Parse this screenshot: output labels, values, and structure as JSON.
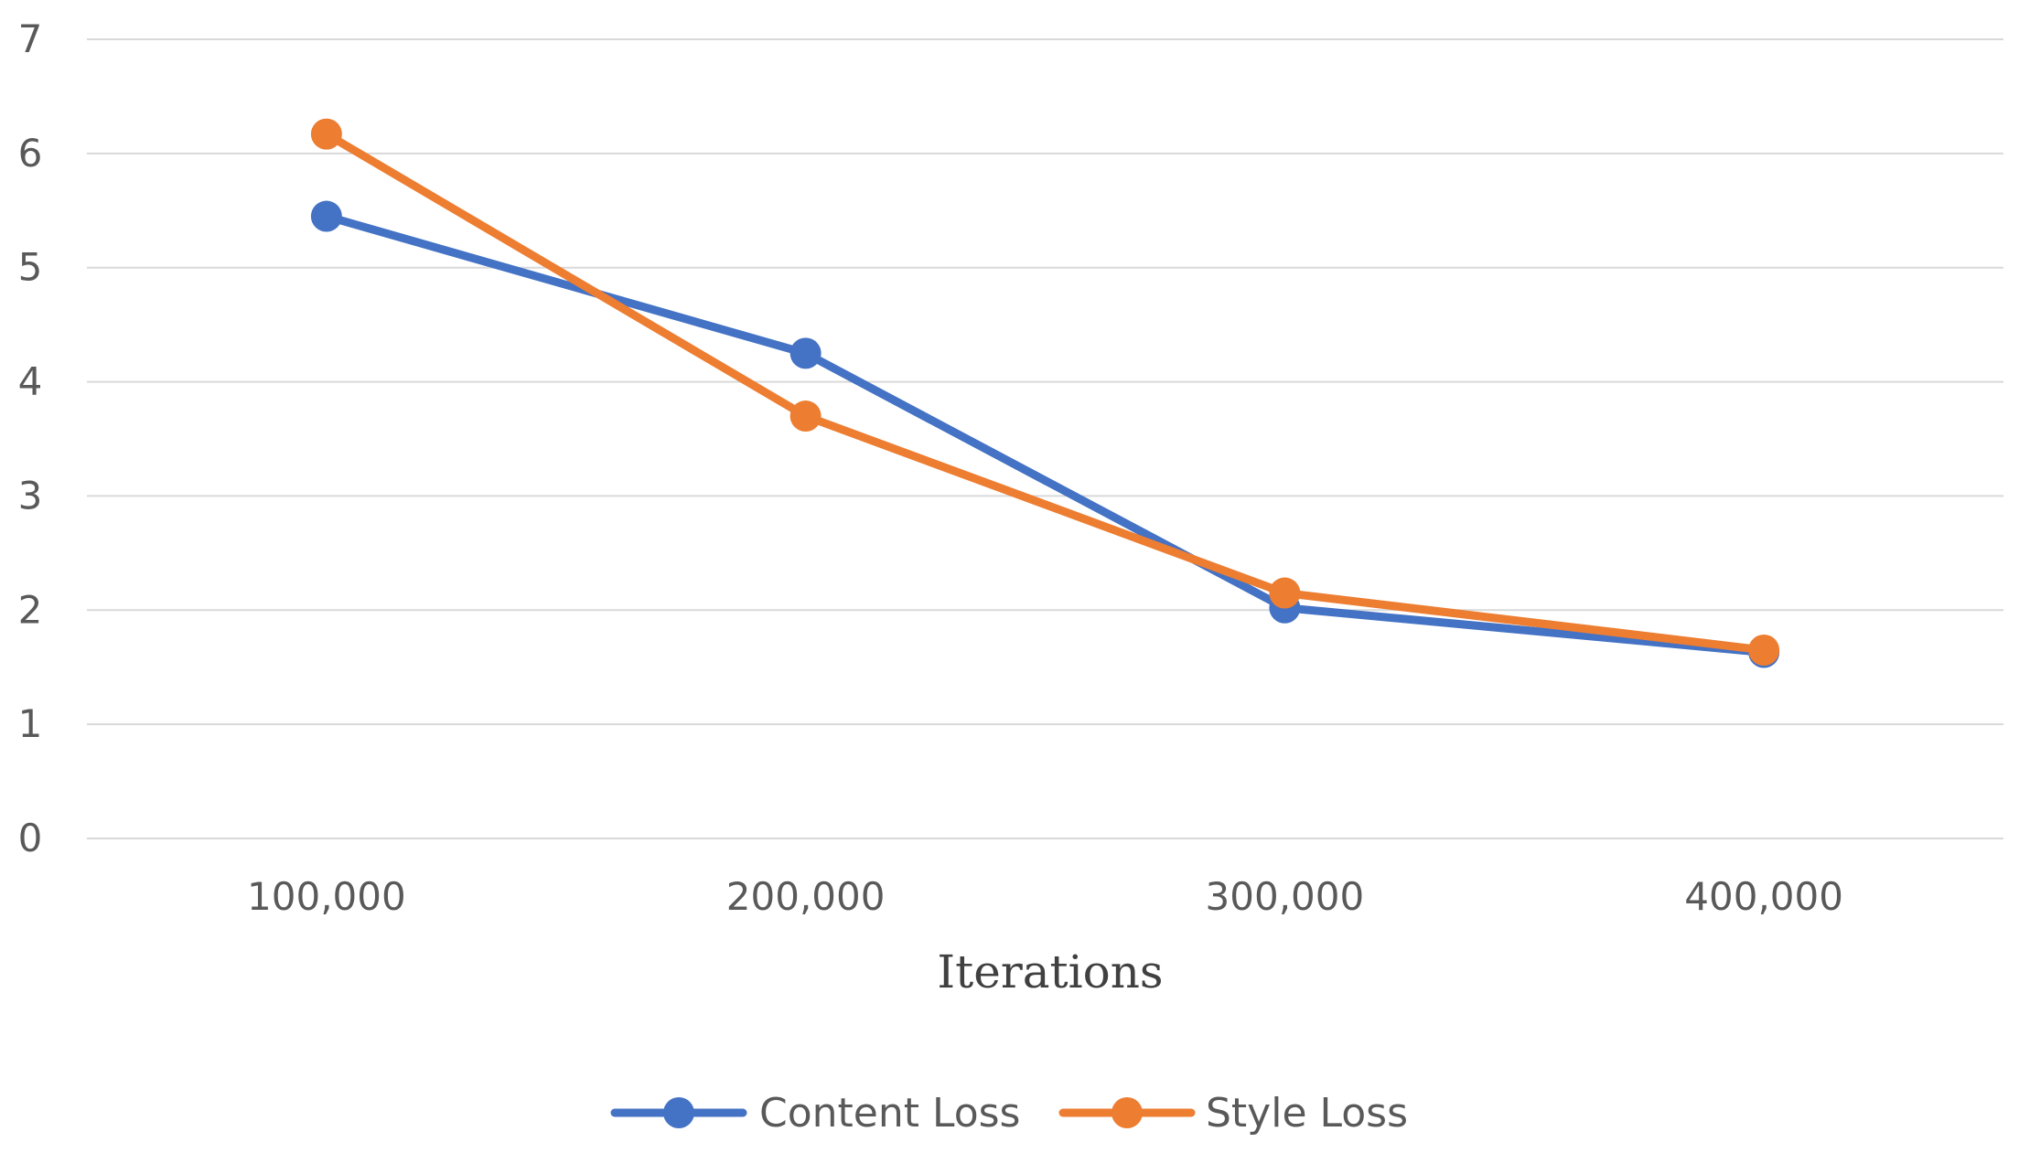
{
  "chart_data": {
    "type": "line",
    "title": "",
    "xlabel": "Iterations",
    "ylabel": "",
    "categories": [
      "100,000",
      "200,000",
      "300,000",
      "400,000"
    ],
    "ylim": [
      0,
      7
    ],
    "yticks": [
      0,
      1,
      2,
      3,
      4,
      5,
      6,
      7
    ],
    "grid": true,
    "legend_position": "bottom",
    "series": [
      {
        "name": "Content Loss",
        "color": "#4472c4",
        "values": [
          5.45,
          4.25,
          2.02,
          1.63
        ]
      },
      {
        "name": "Style Loss",
        "color": "#ed7d31",
        "values": [
          6.17,
          3.7,
          2.15,
          1.65
        ]
      }
    ]
  }
}
